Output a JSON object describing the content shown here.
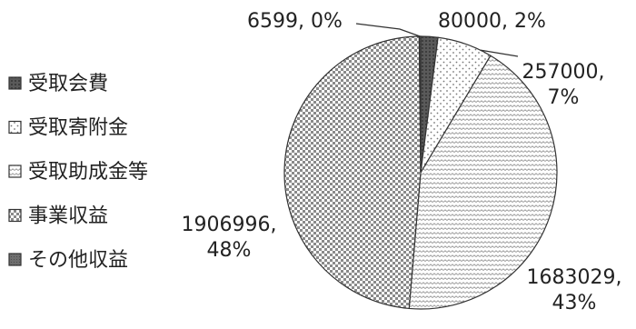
{
  "chart_data": {
    "type": "pie",
    "title": "",
    "legend_position": "left",
    "categories": [
      "受取会費",
      "受取寄附金",
      "受取助成金等",
      "事業収益",
      "その他収益"
    ],
    "values": [
      80000,
      257000,
      1683029,
      1906996,
      6599
    ],
    "percent_labels": [
      "2%",
      "7%",
      "43%",
      "48%",
      "0%"
    ],
    "data_labels": [
      {
        "value": "80000",
        "percent": "2%"
      },
      {
        "value": "257000",
        "percent": "7%"
      },
      {
        "value": "1683029",
        "percent": "43%"
      },
      {
        "value": "1906996",
        "percent": "48%"
      },
      {
        "value": "6599",
        "percent": "0%"
      }
    ],
    "legend_swatch_colors": [
      "#4a4a4a",
      "#f3f3f3",
      "#e8e8e8",
      "#d6d6d6",
      "#6a6a6a"
    ]
  }
}
